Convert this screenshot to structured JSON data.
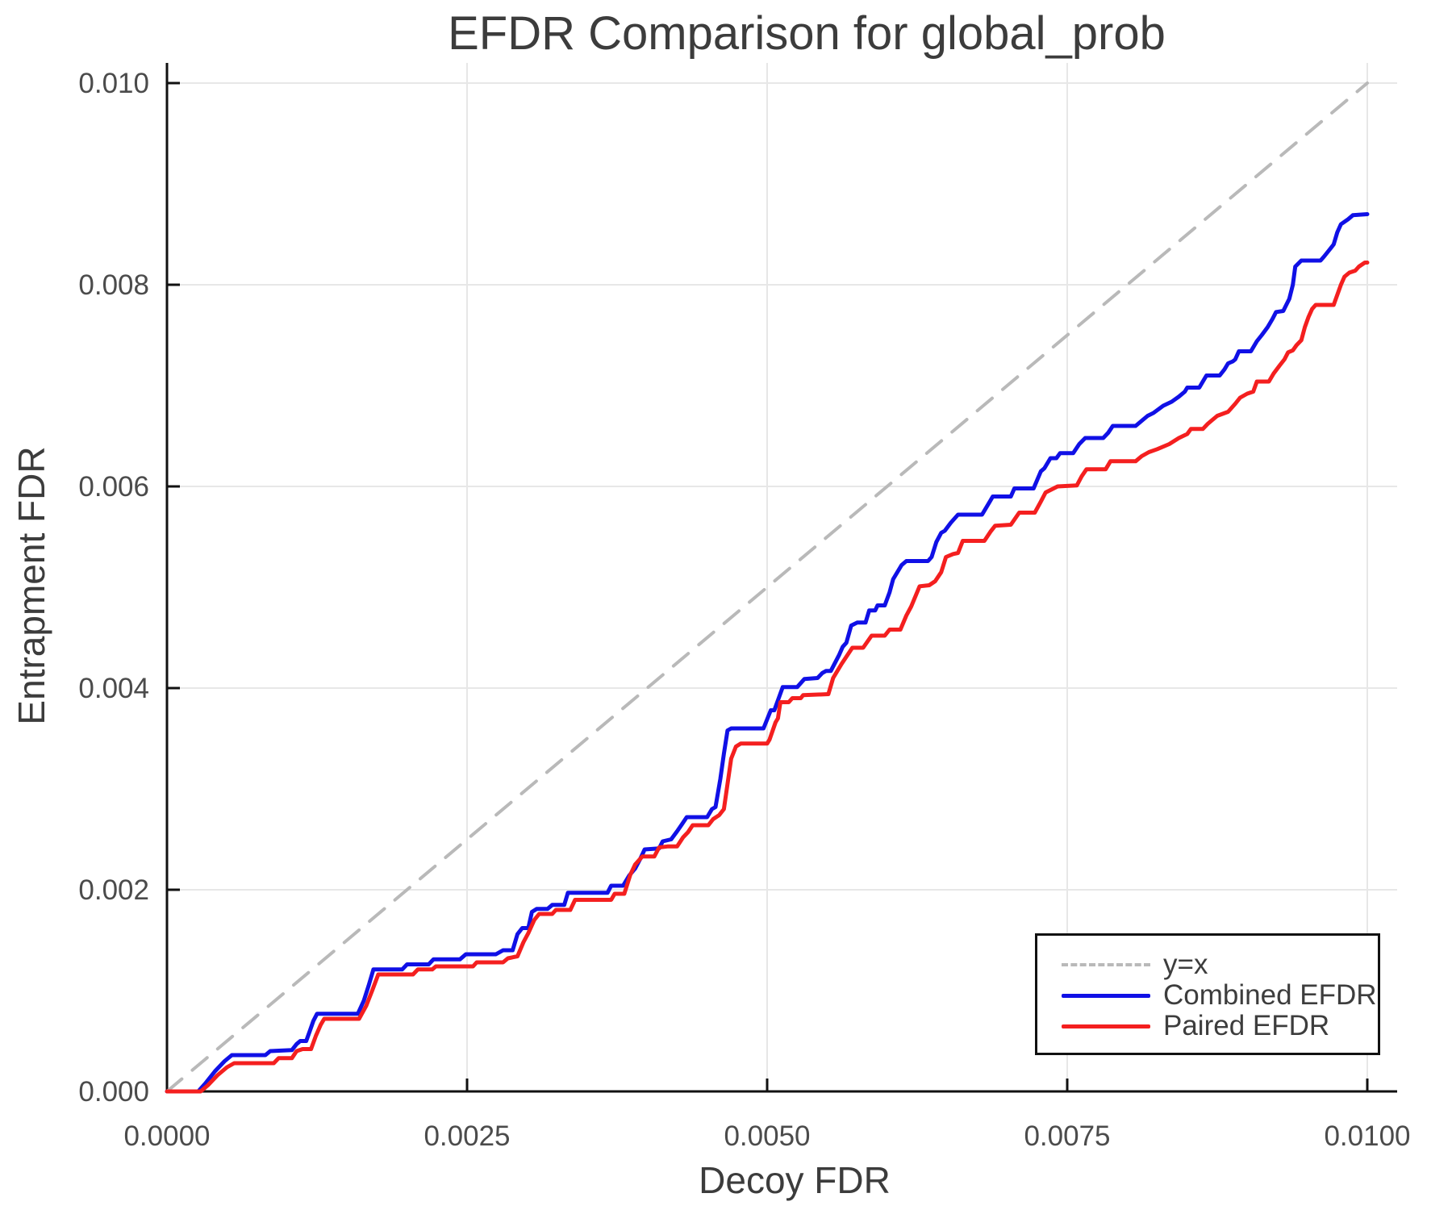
{
  "chart_data": {
    "type": "line",
    "title": "EFDR Comparison for global_prob",
    "xlabel": "Decoy FDR",
    "ylabel": "Entrapment FDR",
    "xlim": [
      0,
      0.0102
    ],
    "ylim": [
      0,
      0.0102
    ],
    "grid": true,
    "legend_position": "lower right",
    "xticks": {
      "values": [
        0.0,
        0.0025,
        0.005,
        0.0075,
        0.01
      ],
      "labels": [
        "0.0000",
        "0.0025",
        "0.0050",
        "0.0075",
        "0.0100"
      ]
    },
    "yticks": {
      "values": [
        0.0,
        0.002,
        0.004,
        0.006,
        0.008,
        0.01
      ],
      "labels": [
        "0.000",
        "0.002",
        "0.004",
        "0.006",
        "0.008",
        "0.010"
      ]
    },
    "colors": {
      "identity": "#b9b9b9",
      "combined": "#1010e6",
      "paired": "#f41f1f",
      "grid": "#e7e7e7",
      "spine": "#111111",
      "tick_label": "#4b4b4b"
    },
    "series": [
      {
        "name": "y=x",
        "style": "dashed",
        "color": "#b9b9b9",
        "points": [
          [
            0,
            0
          ],
          [
            0.01,
            0.01
          ]
        ]
      },
      {
        "name": "Combined EFDR",
        "style": "solid",
        "color": "#1010e6",
        "points": [
          [
            0,
            0
          ],
          [
            0.00026,
            0
          ],
          [
            0.00032,
            8e-05
          ],
          [
            0.0004,
            0.0002
          ],
          [
            0.00048,
            0.0003
          ],
          [
            0.00054,
            0.00036
          ],
          [
            0.00082,
            0.00036
          ],
          [
            0.00086,
            0.0004
          ],
          [
            0.00104,
            0.00041
          ],
          [
            0.00108,
            0.00047
          ],
          [
            0.00111,
            0.0005
          ],
          [
            0.00116,
            0.0005
          ],
          [
            0.00119,
            0.0006
          ],
          [
            0.00122,
            0.0007
          ],
          [
            0.00125,
            0.00077
          ],
          [
            0.00159,
            0.00077
          ],
          [
            0.00164,
            0.0009
          ],
          [
            0.00168,
            0.00105
          ],
          [
            0.00172,
            0.00121
          ],
          [
            0.00196,
            0.00121
          ],
          [
            0.002,
            0.00126
          ],
          [
            0.00218,
            0.00126
          ],
          [
            0.00222,
            0.00131
          ],
          [
            0.00244,
            0.00131
          ],
          [
            0.00249,
            0.00136
          ],
          [
            0.00274,
            0.00136
          ],
          [
            0.0028,
            0.0014
          ],
          [
            0.00288,
            0.0014
          ],
          [
            0.00292,
            0.00156
          ],
          [
            0.00296,
            0.00162
          ],
          [
            0.00301,
            0.00162
          ],
          [
            0.00304,
            0.00178
          ],
          [
            0.00308,
            0.00181
          ],
          [
            0.00317,
            0.00181
          ],
          [
            0.00321,
            0.00185
          ],
          [
            0.00331,
            0.00185
          ],
          [
            0.00334,
            0.00197
          ],
          [
            0.00367,
            0.00197
          ],
          [
            0.0037,
            0.00204
          ],
          [
            0.0038,
            0.00204
          ],
          [
            0.00385,
            0.00214
          ],
          [
            0.0039,
            0.00221
          ],
          [
            0.00394,
            0.0023
          ],
          [
            0.00398,
            0.0024
          ],
          [
            0.0041,
            0.00241
          ],
          [
            0.00413,
            0.00248
          ],
          [
            0.0042,
            0.0025
          ],
          [
            0.00425,
            0.00258
          ],
          [
            0.00429,
            0.00265
          ],
          [
            0.00433,
            0.00272
          ],
          [
            0.0045,
            0.00272
          ],
          [
            0.00454,
            0.0028
          ],
          [
            0.00457,
            0.00282
          ],
          [
            0.00461,
            0.0031
          ],
          [
            0.00464,
            0.00335
          ],
          [
            0.00467,
            0.00358
          ],
          [
            0.0047,
            0.0036
          ],
          [
            0.00497,
            0.0036
          ],
          [
            0.00503,
            0.00378
          ],
          [
            0.00506,
            0.00378
          ],
          [
            0.00513,
            0.00401
          ],
          [
            0.00525,
            0.00401
          ],
          [
            0.00531,
            0.00409
          ],
          [
            0.00542,
            0.0041
          ],
          [
            0.00546,
            0.00415
          ],
          [
            0.00549,
            0.00417
          ],
          [
            0.00553,
            0.00417
          ],
          [
            0.0056,
            0.00433
          ],
          [
            0.00563,
            0.00441
          ],
          [
            0.00566,
            0.00445
          ],
          [
            0.0057,
            0.00462
          ],
          [
            0.00575,
            0.00465
          ],
          [
            0.00582,
            0.00465
          ],
          [
            0.00585,
            0.00477
          ],
          [
            0.0059,
            0.00477
          ],
          [
            0.00592,
            0.00482
          ],
          [
            0.00598,
            0.00482
          ],
          [
            0.00602,
            0.00495
          ],
          [
            0.00605,
            0.00508
          ],
          [
            0.00612,
            0.00522
          ],
          [
            0.00616,
            0.00526
          ],
          [
            0.00634,
            0.00526
          ],
          [
            0.00637,
            0.0053
          ],
          [
            0.00641,
            0.00545
          ],
          [
            0.00645,
            0.00554
          ],
          [
            0.00648,
            0.00556
          ],
          [
            0.00653,
            0.00564
          ],
          [
            0.00659,
            0.00572
          ],
          [
            0.00679,
            0.00572
          ],
          [
            0.00686,
            0.00586
          ],
          [
            0.00688,
            0.0059
          ],
          [
            0.00703,
            0.0059
          ],
          [
            0.00706,
            0.00598
          ],
          [
            0.00722,
            0.00598
          ],
          [
            0.00728,
            0.00615
          ],
          [
            0.00731,
            0.00618
          ],
          [
            0.00736,
            0.00628
          ],
          [
            0.00741,
            0.00628
          ],
          [
            0.00744,
            0.00633
          ],
          [
            0.00755,
            0.00633
          ],
          [
            0.0076,
            0.00642
          ],
          [
            0.00765,
            0.00648
          ],
          [
            0.0078,
            0.00648
          ],
          [
            0.00784,
            0.00653
          ],
          [
            0.00788,
            0.0066
          ],
          [
            0.00807,
            0.0066
          ],
          [
            0.00813,
            0.00666
          ],
          [
            0.00817,
            0.0067
          ],
          [
            0.00822,
            0.00673
          ],
          [
            0.0083,
            0.0068
          ],
          [
            0.00837,
            0.00684
          ],
          [
            0.00843,
            0.00689
          ],
          [
            0.00848,
            0.00694
          ],
          [
            0.0085,
            0.00698
          ],
          [
            0.0086,
            0.00698
          ],
          [
            0.00864,
            0.00706
          ],
          [
            0.00866,
            0.0071
          ],
          [
            0.00877,
            0.0071
          ],
          [
            0.00881,
            0.00716
          ],
          [
            0.00884,
            0.00722
          ],
          [
            0.00888,
            0.00724
          ],
          [
            0.0089,
            0.00726
          ],
          [
            0.00893,
            0.00734
          ],
          [
            0.00903,
            0.00734
          ],
          [
            0.00908,
            0.00744
          ],
          [
            0.00912,
            0.0075
          ],
          [
            0.00917,
            0.00758
          ],
          [
            0.00921,
            0.00766
          ],
          [
            0.00924,
            0.00773
          ],
          [
            0.0093,
            0.00774
          ],
          [
            0.00935,
            0.00786
          ],
          [
            0.00938,
            0.008
          ],
          [
            0.0094,
            0.00818
          ],
          [
            0.00945,
            0.00824
          ],
          [
            0.00961,
            0.00824
          ],
          [
            0.00964,
            0.00828
          ],
          [
            0.00968,
            0.00834
          ],
          [
            0.00972,
            0.0084
          ],
          [
            0.00975,
            0.00852
          ],
          [
            0.00978,
            0.0086
          ],
          [
            0.00984,
            0.00865
          ],
          [
            0.00988,
            0.00869
          ],
          [
            0.01,
            0.0087
          ]
        ]
      },
      {
        "name": "Paired EFDR",
        "style": "solid",
        "color": "#f41f1f",
        "points": [
          [
            0,
            0
          ],
          [
            0.00028,
            0
          ],
          [
            0.00034,
            6e-05
          ],
          [
            0.00042,
            0.00016
          ],
          [
            0.0005,
            0.00024
          ],
          [
            0.00056,
            0.00028
          ],
          [
            0.00089,
            0.00028
          ],
          [
            0.00093,
            0.00033
          ],
          [
            0.00104,
            0.00033
          ],
          [
            0.00108,
            0.0004
          ],
          [
            0.00113,
            0.00042
          ],
          [
            0.0012,
            0.00042
          ],
          [
            0.00124,
            0.00055
          ],
          [
            0.00128,
            0.00066
          ],
          [
            0.00131,
            0.00072
          ],
          [
            0.0016,
            0.00072
          ],
          [
            0.00166,
            0.00085
          ],
          [
            0.00171,
            0.001
          ],
          [
            0.00176,
            0.00116
          ],
          [
            0.00205,
            0.00116
          ],
          [
            0.00209,
            0.00121
          ],
          [
            0.00221,
            0.00121
          ],
          [
            0.00224,
            0.00124
          ],
          [
            0.00255,
            0.00124
          ],
          [
            0.00258,
            0.00128
          ],
          [
            0.0028,
            0.00128
          ],
          [
            0.00284,
            0.00132
          ],
          [
            0.00292,
            0.00134
          ],
          [
            0.00297,
            0.00148
          ],
          [
            0.00301,
            0.00157
          ],
          [
            0.00306,
            0.0017
          ],
          [
            0.0031,
            0.00176
          ],
          [
            0.00321,
            0.00176
          ],
          [
            0.00324,
            0.0018
          ],
          [
            0.00336,
            0.0018
          ],
          [
            0.0034,
            0.0019
          ],
          [
            0.0037,
            0.0019
          ],
          [
            0.00373,
            0.00196
          ],
          [
            0.00381,
            0.00196
          ],
          [
            0.00386,
            0.00215
          ],
          [
            0.0039,
            0.00225
          ],
          [
            0.00396,
            0.00233
          ],
          [
            0.00406,
            0.00233
          ],
          [
            0.0041,
            0.00242
          ],
          [
            0.00417,
            0.00243
          ],
          [
            0.00425,
            0.00243
          ],
          [
            0.0043,
            0.00252
          ],
          [
            0.00434,
            0.00257
          ],
          [
            0.00438,
            0.00264
          ],
          [
            0.00451,
            0.00264
          ],
          [
            0.00455,
            0.0027
          ],
          [
            0.0046,
            0.00274
          ],
          [
            0.00464,
            0.0028
          ],
          [
            0.0047,
            0.0033
          ],
          [
            0.00474,
            0.00342
          ],
          [
            0.00478,
            0.00345
          ],
          [
            0.005,
            0.00345
          ],
          [
            0.00502,
            0.00349
          ],
          [
            0.00507,
            0.00366
          ],
          [
            0.00509,
            0.0037
          ],
          [
            0.00511,
            0.00386
          ],
          [
            0.00518,
            0.00386
          ],
          [
            0.00521,
            0.0039
          ],
          [
            0.00528,
            0.0039
          ],
          [
            0.0053,
            0.00393
          ],
          [
            0.00551,
            0.00394
          ],
          [
            0.00555,
            0.0041
          ],
          [
            0.00562,
            0.00424
          ],
          [
            0.00571,
            0.0044
          ],
          [
            0.0058,
            0.0044
          ],
          [
            0.00587,
            0.00452
          ],
          [
            0.00598,
            0.00452
          ],
          [
            0.00602,
            0.00458
          ],
          [
            0.00611,
            0.00458
          ],
          [
            0.00616,
            0.00472
          ],
          [
            0.0062,
            0.00481
          ],
          [
            0.00627,
            0.00501
          ],
          [
            0.00635,
            0.00502
          ],
          [
            0.0064,
            0.00506
          ],
          [
            0.00645,
            0.00515
          ],
          [
            0.00649,
            0.0053
          ],
          [
            0.00655,
            0.00533
          ],
          [
            0.00659,
            0.00534
          ],
          [
            0.00663,
            0.00546
          ],
          [
            0.00681,
            0.00546
          ],
          [
            0.00686,
            0.00555
          ],
          [
            0.0069,
            0.00561
          ],
          [
            0.00703,
            0.00562
          ],
          [
            0.0071,
            0.00574
          ],
          [
            0.00723,
            0.00574
          ],
          [
            0.00728,
            0.00585
          ],
          [
            0.00732,
            0.00594
          ],
          [
            0.00742,
            0.006
          ],
          [
            0.00758,
            0.00601
          ],
          [
            0.00762,
            0.0061
          ],
          [
            0.00766,
            0.00617
          ],
          [
            0.00782,
            0.00617
          ],
          [
            0.00786,
            0.00625
          ],
          [
            0.00807,
            0.00625
          ],
          [
            0.00812,
            0.0063
          ],
          [
            0.00818,
            0.00634
          ],
          [
            0.00825,
            0.00637
          ],
          [
            0.00835,
            0.00642
          ],
          [
            0.00843,
            0.00648
          ],
          [
            0.0085,
            0.00652
          ],
          [
            0.00853,
            0.00657
          ],
          [
            0.00863,
            0.00657
          ],
          [
            0.00867,
            0.00662
          ],
          [
            0.00871,
            0.00666
          ],
          [
            0.00875,
            0.0067
          ],
          [
            0.00884,
            0.00674
          ],
          [
            0.0089,
            0.00682
          ],
          [
            0.00894,
            0.00688
          ],
          [
            0.009,
            0.00692
          ],
          [
            0.00905,
            0.00694
          ],
          [
            0.00908,
            0.00704
          ],
          [
            0.00918,
            0.00704
          ],
          [
            0.00922,
            0.00712
          ],
          [
            0.00927,
            0.0072
          ],
          [
            0.00931,
            0.00726
          ],
          [
            0.00934,
            0.00733
          ],
          [
            0.00938,
            0.00735
          ],
          [
            0.00941,
            0.0074
          ],
          [
            0.00945,
            0.00745
          ],
          [
            0.00948,
            0.00758
          ],
          [
            0.00951,
            0.00768
          ],
          [
            0.00954,
            0.00776
          ],
          [
            0.00957,
            0.0078
          ],
          [
            0.00972,
            0.0078
          ],
          [
            0.00975,
            0.0079
          ],
          [
            0.00978,
            0.008
          ],
          [
            0.00981,
            0.00808
          ],
          [
            0.00985,
            0.00812
          ],
          [
            0.0099,
            0.00814
          ],
          [
            0.00993,
            0.00818
          ],
          [
            0.00998,
            0.00822
          ],
          [
            0.01,
            0.00822
          ]
        ]
      }
    ]
  }
}
